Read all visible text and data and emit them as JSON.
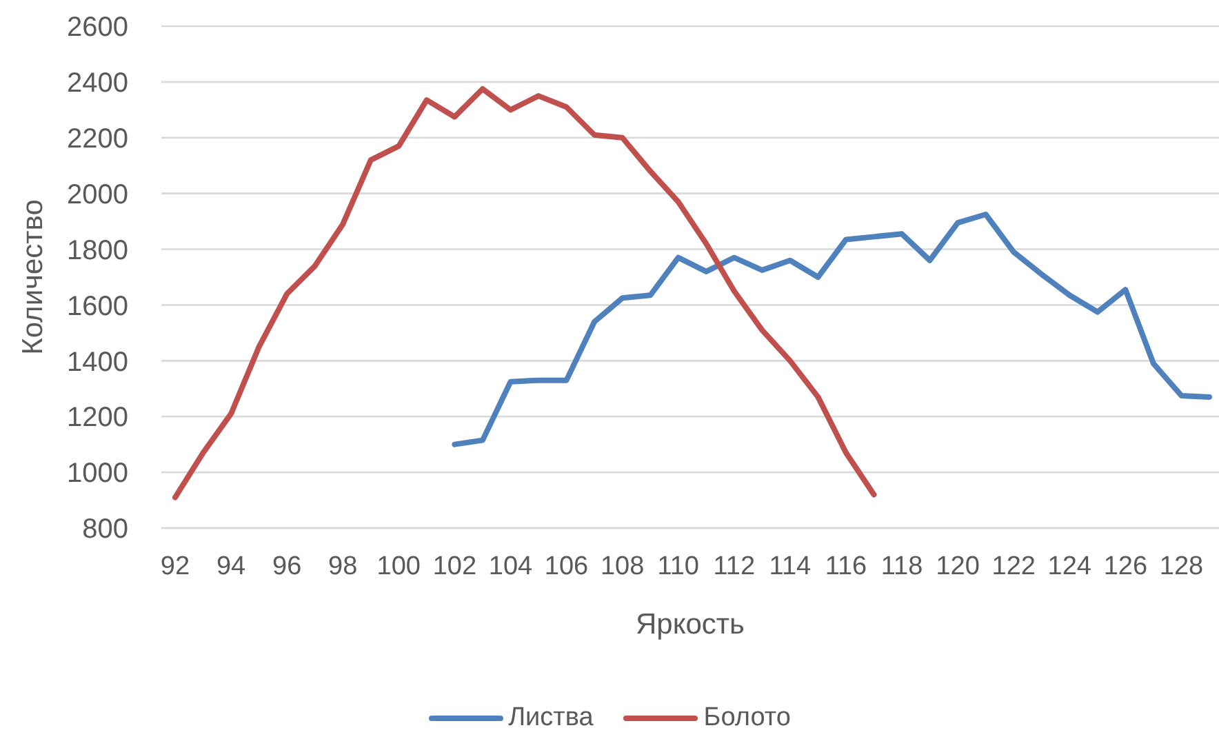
{
  "chart_data": {
    "type": "line",
    "xlabel": "Яркость",
    "ylabel": "Количество",
    "categories": [
      "92",
      null,
      "94",
      null,
      "96",
      null,
      "98",
      null,
      "100",
      null,
      "102",
      null,
      "104",
      null,
      "106",
      null,
      "108",
      null,
      "110",
      null,
      "112",
      null,
      "114",
      null,
      "116",
      null,
      "118",
      null,
      "120",
      null,
      "122",
      null,
      "124",
      null,
      "126",
      null,
      "128",
      null
    ],
    "series": [
      {
        "name": "Листва",
        "color": "#4f81bd",
        "values": [
          null,
          null,
          null,
          null,
          null,
          null,
          null,
          null,
          null,
          null,
          1100,
          1115,
          1325,
          1330,
          1330,
          1540,
          1625,
          1635,
          1770,
          1720,
          1770,
          1725,
          1760,
          1700,
          1835,
          1845,
          1855,
          1760,
          1895,
          1925,
          1790,
          1710,
          1635,
          1575,
          1655,
          1390,
          1275,
          1270
        ]
      },
      {
        "name": "Болото",
        "color": "#c0504d",
        "values": [
          910,
          1070,
          1210,
          1450,
          1640,
          1740,
          1890,
          2120,
          2170,
          2335,
          2275,
          2375,
          2300,
          2350,
          2310,
          2210,
          2200,
          2080,
          1970,
          1820,
          1650,
          1510,
          1400,
          1270,
          1070,
          920,
          null,
          null,
          null,
          null,
          null,
          null,
          null,
          null,
          null,
          null,
          null,
          null
        ]
      }
    ],
    "ylim": [
      800,
      2600
    ],
    "yticks": [
      800,
      1000,
      1200,
      1400,
      1600,
      1800,
      2000,
      2200,
      2400,
      2600
    ],
    "grid": "y",
    "legend": "bottom",
    "marker": "none"
  }
}
